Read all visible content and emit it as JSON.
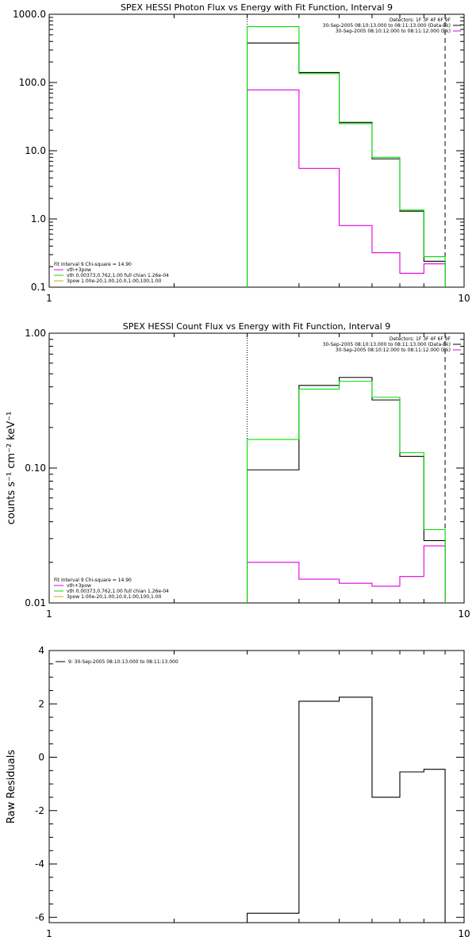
{
  "chart_data": [
    {
      "type": "line",
      "title": "SPEX HESSI Photon Flux vs Energy with Fit Function, Interval 9",
      "xscale": "log",
      "yscale": "log",
      "xlim": [
        1,
        10
      ],
      "ylim": [
        0.1,
        1000
      ],
      "xticks": [
        "1",
        "10"
      ],
      "yticks": [
        "0.1",
        "1.0",
        "10.0",
        "100.0",
        "1000.0"
      ],
      "xlabel": "",
      "ylabel": "",
      "grid": false,
      "legend_top": {
        "position": "top-right",
        "lines": [
          "Detectors: 1F 3F 4F 6F 9F",
          "30-Sep-2005 08:10:13.000 to 08:11:13.000 (Data-Bk)",
          "30-Sep-2005 08:10:12.000 to 08:11:12.000 (Bk)"
        ]
      },
      "legend_bottom": {
        "position": "bottom-left",
        "lines": [
          "Fit Interval 9   Chi-square = 14.90",
          "vth+3pow",
          "vth 0.00373,0.762,1.00   full chian 1.26e-04",
          "3pow 1.00e-20,1.00,10.0,1.00,100,1.00"
        ]
      },
      "edges": [
        3,
        4,
        5,
        6,
        7,
        8,
        9
      ],
      "vlines": [
        3,
        9
      ],
      "series": [
        {
          "name": "30-Sep-2005 08:10:13.000 to 08:11:13.000 (Data-Bk)",
          "color": "#000000",
          "values": [
            380,
            140,
            26,
            7.6,
            1.3,
            0.24
          ]
        },
        {
          "name": "30-Sep-2005 08:10:12.000 to 08:11:12.000 (Bk)",
          "color": "#e000e0",
          "values": [
            78,
            5.5,
            0.8,
            0.32,
            0.16,
            0.22
          ]
        },
        {
          "name": "vth+3pow",
          "color": "#00e000",
          "values": [
            660,
            135,
            25,
            8,
            1.35,
            0.28
          ]
        }
      ]
    },
    {
      "type": "line",
      "title": "SPEX HESSI Count Flux vs Energy with Fit Function, Interval 9",
      "xscale": "log",
      "yscale": "log",
      "xlim": [
        1,
        10
      ],
      "ylim": [
        0.01,
        1
      ],
      "xticks": [
        "1",
        "10"
      ],
      "yticks": [
        "0.01",
        "0.10",
        "1.00"
      ],
      "xlabel": "",
      "ylabel": "counts s⁻¹ cm⁻² keV⁻¹",
      "grid": false,
      "legend_top": {
        "position": "top-right",
        "lines": [
          "Detectors: 1F 3F 4F 6F 9F",
          "30-Sep-2005 08:10:13.000 to 08:11:13.000 (Data-Bk)",
          "30-Sep-2005 08:10:12.000 to 08:11:12.000 (Bk)"
        ]
      },
      "legend_bottom": {
        "position": "bottom-left",
        "lines": [
          "Fit Interval 9   Chi-square = 14.90",
          "vth+3pow",
          "vth 0.00373,0.762,1.00   full chian 1.26e-04",
          "3pow 1.00e-20,1.00,10.0,1.00,100,1.00"
        ]
      },
      "edges": [
        3,
        4,
        5,
        6,
        7,
        8,
        9
      ],
      "vlines": [
        3,
        9
      ],
      "series": [
        {
          "name": "30-Sep-2005 08:10:13.000 to 08:11:13.000 (Data-Bk)",
          "color": "#000000",
          "values": [
            0.097,
            0.41,
            0.47,
            0.32,
            0.122,
            0.029
          ]
        },
        {
          "name": "30-Sep-2005 08:10:12.000 to 08:11:12.000 (Bk)",
          "color": "#e000e0",
          "values": [
            0.02,
            0.015,
            0.014,
            0.0133,
            0.0157,
            0.0265
          ]
        },
        {
          "name": "vth+3pow",
          "color": "#00e000",
          "values": [
            0.163,
            0.385,
            0.44,
            0.335,
            0.13,
            0.035
          ]
        }
      ]
    },
    {
      "type": "line",
      "title": "",
      "xscale": "log",
      "yscale": "linear",
      "xlim": [
        1,
        10
      ],
      "ylim": [
        -6.2,
        4
      ],
      "xticks": [
        "1",
        "10"
      ],
      "yticks": [
        "-6",
        "-4",
        "-2",
        "0",
        "2",
        "4"
      ],
      "xlabel": "",
      "ylabel": "Raw Residuals",
      "grid": false,
      "legend_top": {
        "position": "top-left",
        "lines": [
          "9: 30-Sep-2005 08:10:13.000 to 08:11:13.000"
        ]
      },
      "edges": [
        3,
        4,
        5,
        6,
        7,
        8,
        9
      ],
      "series": [
        {
          "name": "9: 30-Sep-2005 08:10:13.000 to 08:11:13.000",
          "color": "#000000",
          "values": [
            -5.85,
            2.1,
            2.25,
            -1.5,
            -0.55,
            -0.45
          ]
        }
      ]
    }
  ]
}
